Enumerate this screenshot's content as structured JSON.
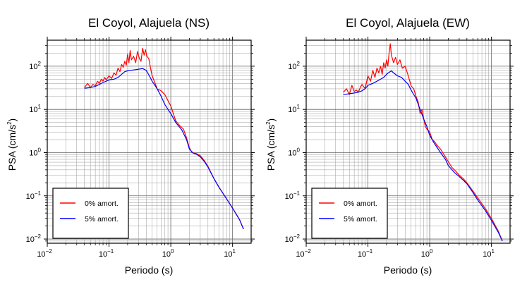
{
  "chart_data": [
    {
      "type": "line",
      "title": "El Coyol, Alajuela (NS)",
      "xlabel": "Periodo (s)",
      "ylabel": "PSA (cm/s²)",
      "ylabel_main": "PSA (cm/s",
      "ylabel_sup": "2",
      "ylabel_end": ")",
      "xscale": "log",
      "yscale": "log",
      "xlim": [
        0.01,
        20
      ],
      "ylim": [
        0.008,
        400
      ],
      "xticks": [
        0.01,
        0.1,
        1,
        10
      ],
      "xtick_labels": [
        {
          "base": "10",
          "exp": "−2"
        },
        {
          "base": "10",
          "exp": "−1"
        },
        {
          "base": "10",
          "exp": "0"
        },
        {
          "base": "10",
          "exp": "1"
        }
      ],
      "yticks": [
        0.01,
        0.1,
        1,
        10,
        100
      ],
      "ytick_labels": [
        {
          "base": "10",
          "exp": "−2"
        },
        {
          "base": "10",
          "exp": "−1"
        },
        {
          "base": "10",
          "exp": "0"
        },
        {
          "base": "10",
          "exp": "1"
        },
        {
          "base": "10",
          "exp": "2"
        }
      ],
      "grid": true,
      "legend_position": "bottom-left",
      "series": [
        {
          "name": "0% amort.",
          "color": "#ff0000",
          "points": [
            [
              0.04,
              32
            ],
            [
              0.045,
              40
            ],
            [
              0.05,
              32
            ],
            [
              0.055,
              38
            ],
            [
              0.06,
              35
            ],
            [
              0.065,
              45
            ],
            [
              0.07,
              40
            ],
            [
              0.075,
              50
            ],
            [
              0.08,
              45
            ],
            [
              0.085,
              55
            ],
            [
              0.09,
              48
            ],
            [
              0.1,
              60
            ],
            [
              0.11,
              52
            ],
            [
              0.12,
              70
            ],
            [
              0.13,
              62
            ],
            [
              0.14,
              90
            ],
            [
              0.15,
              75
            ],
            [
              0.16,
              110
            ],
            [
              0.17,
              95
            ],
            [
              0.18,
              130
            ],
            [
              0.19,
              105
            ],
            [
              0.2,
              190
            ],
            [
              0.21,
              120
            ],
            [
              0.22,
              230
            ],
            [
              0.23,
              140
            ],
            [
              0.25,
              170
            ],
            [
              0.27,
              120
            ],
            [
              0.29,
              220
            ],
            [
              0.31,
              150
            ],
            [
              0.33,
              130
            ],
            [
              0.35,
              260
            ],
            [
              0.37,
              180
            ],
            [
              0.39,
              240
            ],
            [
              0.41,
              170
            ],
            [
              0.44,
              150
            ],
            [
              0.47,
              90
            ],
            [
              0.5,
              60
            ],
            [
              0.55,
              42
            ],
            [
              0.6,
              30
            ],
            [
              0.7,
              27
            ],
            [
              0.8,
              22
            ],
            [
              0.9,
              16
            ],
            [
              1.0,
              12
            ],
            [
              1.1,
              8
            ],
            [
              1.2,
              5.5
            ],
            [
              1.4,
              4.2
            ],
            [
              1.6,
              3.5
            ],
            [
              1.8,
              2.2
            ],
            [
              2.0,
              1.3
            ],
            [
              2.2,
              1.0
            ],
            [
              2.6,
              0.95
            ],
            [
              3.0,
              0.85
            ],
            [
              3.5,
              0.65
            ],
            [
              4.0,
              0.48
            ],
            [
              5.0,
              0.25
            ],
            [
              6.0,
              0.16
            ],
            [
              8.0,
              0.085
            ],
            [
              10.0,
              0.052
            ],
            [
              13.0,
              0.028
            ],
            [
              15.0,
              0.017
            ]
          ]
        },
        {
          "name": "5% amort.",
          "color": "#0000ff",
          "points": [
            [
              0.04,
              31
            ],
            [
              0.05,
              32
            ],
            [
              0.06,
              34
            ],
            [
              0.07,
              38
            ],
            [
              0.08,
              42
            ],
            [
              0.09,
              45
            ],
            [
              0.1,
              48
            ],
            [
              0.12,
              50
            ],
            [
              0.14,
              55
            ],
            [
              0.16,
              65
            ],
            [
              0.18,
              75
            ],
            [
              0.2,
              78
            ],
            [
              0.25,
              82
            ],
            [
              0.3,
              85
            ],
            [
              0.35,
              88
            ],
            [
              0.4,
              80
            ],
            [
              0.45,
              60
            ],
            [
              0.5,
              45
            ],
            [
              0.6,
              30
            ],
            [
              0.7,
              20
            ],
            [
              0.8,
              13
            ],
            [
              0.9,
              10
            ],
            [
              1.0,
              8
            ],
            [
              1.2,
              5
            ],
            [
              1.5,
              3.4
            ],
            [
              1.8,
              2
            ],
            [
              2.0,
              1.2
            ],
            [
              2.3,
              0.98
            ],
            [
              2.6,
              0.92
            ],
            [
              3.0,
              0.8
            ],
            [
              3.5,
              0.62
            ],
            [
              4.0,
              0.46
            ],
            [
              5.0,
              0.25
            ],
            [
              6.0,
              0.16
            ],
            [
              8.0,
              0.085
            ],
            [
              10.0,
              0.052
            ],
            [
              13.0,
              0.028
            ],
            [
              15.0,
              0.017
            ]
          ]
        }
      ]
    },
    {
      "type": "line",
      "title": "El Coyol, Alajuela (EW)",
      "xlabel": "Periodo (s)",
      "ylabel": "PSA (cm/s²)",
      "ylabel_main": "PSA (cm/s",
      "ylabel_sup": "2",
      "ylabel_end": ")",
      "xscale": "log",
      "yscale": "log",
      "xlim": [
        0.01,
        20
      ],
      "ylim": [
        0.008,
        400
      ],
      "xticks": [
        0.01,
        0.1,
        1,
        10
      ],
      "xtick_labels": [
        {
          "base": "10",
          "exp": "−2"
        },
        {
          "base": "10",
          "exp": "−1"
        },
        {
          "base": "10",
          "exp": "0"
        },
        {
          "base": "10",
          "exp": "1"
        }
      ],
      "yticks": [
        0.01,
        0.1,
        1,
        10,
        100
      ],
      "ytick_labels": [
        {
          "base": "10",
          "exp": "−2"
        },
        {
          "base": "10",
          "exp": "−1"
        },
        {
          "base": "10",
          "exp": "0"
        },
        {
          "base": "10",
          "exp": "1"
        },
        {
          "base": "10",
          "exp": "2"
        }
      ],
      "grid": true,
      "legend_position": "bottom-left",
      "series": [
        {
          "name": "0% amort.",
          "color": "#ff0000",
          "points": [
            [
              0.04,
              25
            ],
            [
              0.045,
              30
            ],
            [
              0.05,
              22
            ],
            [
              0.055,
              36
            ],
            [
              0.06,
              26
            ],
            [
              0.065,
              28
            ],
            [
              0.07,
              25
            ],
            [
              0.075,
              32
            ],
            [
              0.08,
              38
            ],
            [
              0.09,
              30
            ],
            [
              0.1,
              60
            ],
            [
              0.11,
              45
            ],
            [
              0.12,
              80
            ],
            [
              0.13,
              55
            ],
            [
              0.14,
              90
            ],
            [
              0.15,
              70
            ],
            [
              0.16,
              100
            ],
            [
              0.17,
              65
            ],
            [
              0.18,
              120
            ],
            [
              0.19,
              90
            ],
            [
              0.2,
              140
            ],
            [
              0.21,
              100
            ],
            [
              0.22,
              200
            ],
            [
              0.23,
              330
            ],
            [
              0.24,
              180
            ],
            [
              0.26,
              120
            ],
            [
              0.28,
              160
            ],
            [
              0.3,
              110
            ],
            [
              0.33,
              140
            ],
            [
              0.36,
              90
            ],
            [
              0.4,
              100
            ],
            [
              0.45,
              60
            ],
            [
              0.5,
              35
            ],
            [
              0.55,
              30
            ],
            [
              0.6,
              20
            ],
            [
              0.65,
              15
            ],
            [
              0.7,
              8
            ],
            [
              0.75,
              10
            ],
            [
              0.8,
              6
            ],
            [
              0.85,
              4
            ],
            [
              0.9,
              3.5
            ],
            [
              1.0,
              3
            ],
            [
              1.1,
              2
            ],
            [
              1.2,
              1.8
            ],
            [
              1.3,
              1.5
            ],
            [
              1.5,
              1.2
            ],
            [
              1.7,
              0.9
            ],
            [
              1.9,
              0.7
            ],
            [
              2.1,
              0.55
            ],
            [
              2.3,
              0.45
            ],
            [
              2.6,
              0.38
            ],
            [
              3.0,
              0.3
            ],
            [
              3.5,
              0.25
            ],
            [
              4.0,
              0.2
            ],
            [
              5.0,
              0.13
            ],
            [
              6.0,
              0.09
            ],
            [
              8.0,
              0.05
            ],
            [
              10.0,
              0.03
            ],
            [
              13.0,
              0.015
            ],
            [
              15.0,
              0.009
            ]
          ]
        },
        {
          "name": "5% amort.",
          "color": "#0000ff",
          "points": [
            [
              0.04,
              22
            ],
            [
              0.05,
              23
            ],
            [
              0.06,
              24
            ],
            [
              0.07,
              25
            ],
            [
              0.08,
              27
            ],
            [
              0.09,
              30
            ],
            [
              0.1,
              36
            ],
            [
              0.12,
              40
            ],
            [
              0.14,
              45
            ],
            [
              0.16,
              50
            ],
            [
              0.18,
              55
            ],
            [
              0.2,
              65
            ],
            [
              0.22,
              72
            ],
            [
              0.24,
              78
            ],
            [
              0.26,
              70
            ],
            [
              0.3,
              60
            ],
            [
              0.35,
              55
            ],
            [
              0.4,
              45
            ],
            [
              0.45,
              38
            ],
            [
              0.5,
              28
            ],
            [
              0.6,
              18
            ],
            [
              0.7,
              10
            ],
            [
              0.8,
              6
            ],
            [
              0.9,
              4
            ],
            [
              1.0,
              2.5
            ],
            [
              1.2,
              1.6
            ],
            [
              1.5,
              1.0
            ],
            [
              1.8,
              0.7
            ],
            [
              2.0,
              0.5
            ],
            [
              2.5,
              0.35
            ],
            [
              3.0,
              0.28
            ],
            [
              3.5,
              0.23
            ],
            [
              4.0,
              0.19
            ],
            [
              5.0,
              0.12
            ],
            [
              6.0,
              0.08
            ],
            [
              8.0,
              0.045
            ],
            [
              10.0,
              0.027
            ],
            [
              13.0,
              0.014
            ],
            [
              15.0,
              0.009
            ]
          ]
        }
      ]
    }
  ]
}
